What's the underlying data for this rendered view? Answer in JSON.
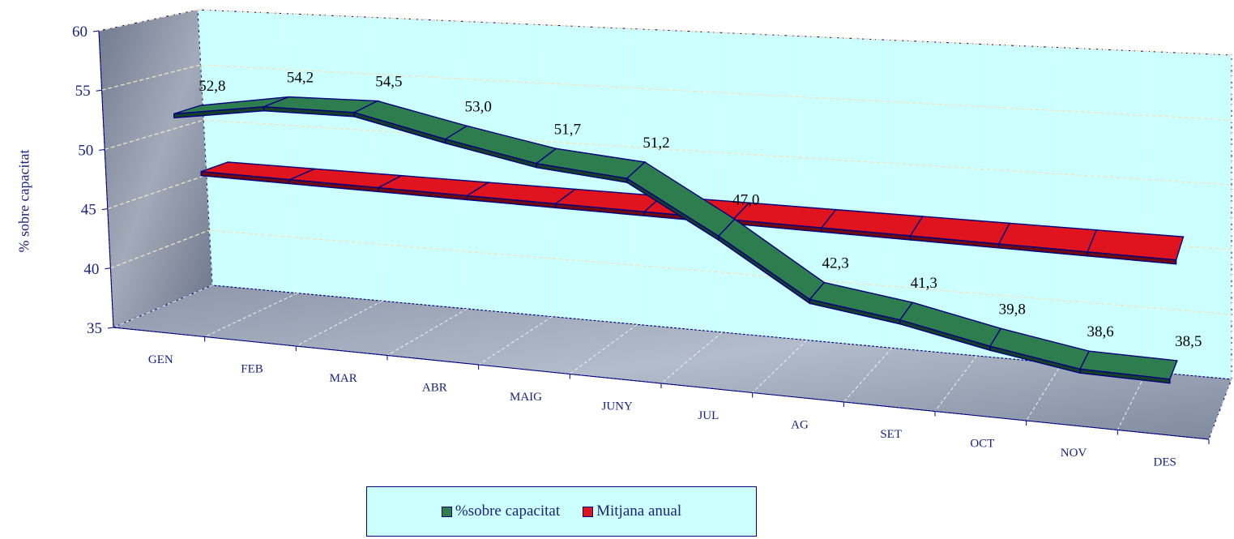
{
  "chart_data": {
    "type": "line",
    "style": "3d-ribbon",
    "categories": [
      "GEN",
      "FEB",
      "MAR",
      "ABR",
      "MAIG",
      "JUNY",
      "JUL",
      "AG",
      "SET",
      "OCT",
      "NOV",
      "DES"
    ],
    "series": [
      {
        "name": "%sobre capacitat",
        "values": [
          52.8,
          54.2,
          54.5,
          53.0,
          51.7,
          51.2,
          47.0,
          42.3,
          41.3,
          39.8,
          38.6,
          38.5
        ],
        "data_labels": [
          "52,8",
          "54,2",
          "54,5",
          "53,0",
          "51,7",
          "51,2",
          "47,0",
          "42,3",
          "41,3",
          "39,8",
          "38,6",
          "38,5"
        ],
        "color": "#2e7d4f"
      },
      {
        "name": "Mitjana anual",
        "values": [
          47.1,
          47.1,
          47.1,
          47.1,
          47.1,
          47.1,
          47.1,
          47.1,
          47.1,
          47.1,
          47.1,
          47.1
        ],
        "color": "#e0141e"
      }
    ],
    "ylabel": "% sobre capacitat",
    "xlabel": "",
    "title": "",
    "ylim": [
      35,
      60
    ],
    "yticks": [
      "35",
      "40",
      "45",
      "50",
      "55",
      "60"
    ],
    "grid": true,
    "legend_position": "bottom-center",
    "colors": {
      "back_wall": "#ccffff",
      "side_wall": "#8a93a6",
      "floor": "#9ba6b6",
      "axis_text": "#1a237e",
      "outline": "#000080"
    }
  }
}
